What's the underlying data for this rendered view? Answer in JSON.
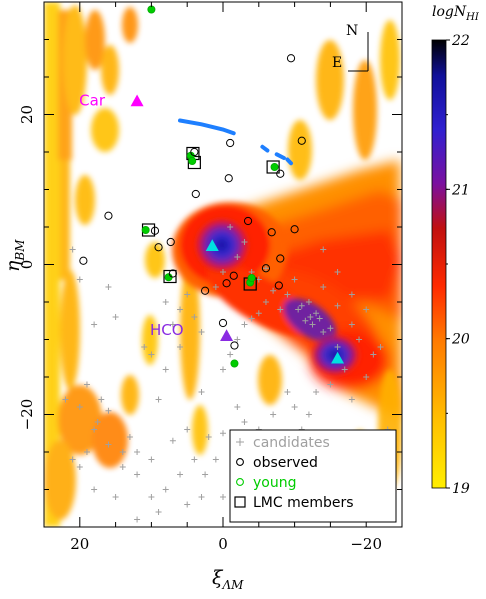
{
  "chart_data": {
    "type": "scatter",
    "title": "",
    "xlabel": "ξ",
    "xlabel_sub": "ΛM",
    "ylabel": "η",
    "ylabel_sub": "BM",
    "xlim": [
      25,
      -25
    ],
    "ylim": [
      -35,
      35
    ],
    "x_ticks": [
      20,
      0,
      -20
    ],
    "x_tick_labels": [
      "20",
      "0",
      "−20"
    ],
    "y_ticks": [
      20,
      0,
      -20
    ],
    "y_tick_labels": [
      "20",
      "0",
      "−20"
    ],
    "grid": false,
    "colorbar": {
      "label": "logN",
      "label_sub": "HI",
      "range": [
        19,
        22
      ],
      "ticks": [
        19,
        20,
        21,
        22
      ],
      "tick_labels": [
        "19",
        "20",
        "21",
        "22"
      ],
      "colors": [
        "#ffee00",
        "#ffb000",
        "#ff5a00",
        "#e80000",
        "#9a1010",
        "#6a10a0",
        "#3020d0",
        "#1010a0",
        "#000000"
      ]
    },
    "compass": {
      "north": "N",
      "east": "E"
    },
    "legend": {
      "position": "bottom-right",
      "entries": [
        {
          "label": "candidates",
          "marker": "plus",
          "color": "#a0a0a0"
        },
        {
          "label": "observed",
          "marker": "open-circle",
          "color": "#000000"
        },
        {
          "label": "young",
          "marker": "open-circle",
          "color": "#00cc00"
        },
        {
          "label": "LMC members",
          "marker": "open-square",
          "color": "#000000"
        }
      ]
    },
    "annotations": [
      {
        "text": "Car",
        "x": 14.5,
        "y": 22,
        "color": "#ff00ff"
      },
      {
        "text": "HCO",
        "x": 3.5,
        "y": -8.6,
        "color": "#8a2be2"
      }
    ],
    "series": [
      {
        "name": "observed",
        "marker": "open-circle",
        "color": "#000000",
        "points": [
          [
            -9.5,
            27.5
          ],
          [
            -1,
            16.2
          ],
          [
            -11,
            16.5
          ],
          [
            4,
            15
          ],
          [
            -0.8,
            11.5
          ],
          [
            -8,
            12.1
          ],
          [
            3.8,
            9.4
          ],
          [
            16,
            6.5
          ],
          [
            9.5,
            4.5
          ],
          [
            -3.5,
            5.8
          ],
          [
            -6.8,
            4.3
          ],
          [
            -10,
            4.7
          ],
          [
            19.5,
            0.5
          ],
          [
            9,
            2.3
          ],
          [
            7.3,
            3
          ],
          [
            -8,
            0.8
          ],
          [
            -1.5,
            -1.5
          ],
          [
            -0.5,
            -2.5
          ],
          [
            -7.8,
            -2.8
          ],
          [
            2.5,
            -3.5
          ],
          [
            0,
            -7.8
          ],
          [
            7,
            -1.2
          ],
          [
            -1.6,
            -10.8
          ],
          [
            -6,
            -0.5
          ]
        ]
      },
      {
        "name": "young",
        "marker": "open-circle",
        "color": "#00cc00",
        "points": [
          [
            10,
            34
          ],
          [
            4.5,
            14.5
          ],
          [
            4.3,
            13.8
          ],
          [
            -7.2,
            13
          ],
          [
            10.8,
            4.6
          ],
          [
            7.6,
            -1.7
          ],
          [
            -3.8,
            -2.4
          ],
          [
            -1.6,
            -13.2
          ],
          [
            -4,
            -1.8
          ]
        ]
      },
      {
        "name": "LMC members",
        "marker": "open-square",
        "color": "#000000",
        "points": [
          [
            4.2,
            14.8
          ],
          [
            4,
            13.6
          ],
          [
            -7,
            13
          ],
          [
            10.4,
            4.6
          ],
          [
            7.4,
            -1.6
          ],
          [
            -3.8,
            -2.6
          ]
        ]
      },
      {
        "name": "candidates",
        "marker": "plus",
        "color": "#a0a0a0",
        "points": [
          [
            -12,
            -5
          ],
          [
            -13,
            -6.5
          ],
          [
            -11.5,
            -7.5
          ],
          [
            -12.5,
            -8
          ],
          [
            -14,
            -9
          ],
          [
            -10.5,
            -6
          ],
          [
            -15,
            -8.5
          ],
          [
            -11,
            -5.5
          ],
          [
            -13.5,
            -7.2
          ],
          [
            -16,
            -11
          ],
          [
            -12.2,
            -7
          ],
          [
            -10,
            -2
          ],
          [
            -9,
            -4
          ],
          [
            -8,
            -6
          ],
          [
            -6,
            -5
          ],
          [
            -7,
            -3.5
          ],
          [
            -5,
            -6.5
          ],
          [
            -4,
            -7.2
          ],
          [
            -3,
            -8
          ],
          [
            -2,
            -10
          ],
          [
            -1,
            -12
          ],
          [
            0,
            -14
          ],
          [
            -14,
            2
          ],
          [
            -16,
            -1
          ],
          [
            -18,
            -4
          ],
          [
            -20,
            -6
          ],
          [
            -19,
            -10
          ],
          [
            -21,
            -12
          ],
          [
            -17,
            -14
          ],
          [
            -20,
            -15
          ],
          [
            -13,
            -17
          ],
          [
            -12,
            -20
          ],
          [
            -11,
            -22
          ],
          [
            -10.5,
            -24
          ],
          [
            -9,
            -28
          ],
          [
            -5,
            -30
          ],
          [
            -6,
            -25
          ],
          [
            -7,
            -28
          ],
          [
            -3,
            -34
          ],
          [
            -2,
            -33
          ],
          [
            1,
            -26
          ],
          [
            2.5,
            -28
          ],
          [
            3,
            -31
          ],
          [
            5,
            -32
          ],
          [
            8,
            -30
          ],
          [
            10,
            -31
          ],
          [
            12,
            -28
          ],
          [
            14,
            -27
          ],
          [
            16,
            -24
          ],
          [
            18,
            -22
          ],
          [
            19,
            -25
          ],
          [
            20,
            -27
          ],
          [
            21,
            -26
          ],
          [
            18,
            -30
          ],
          [
            15,
            -31
          ],
          [
            12,
            -34
          ],
          [
            22,
            -18
          ],
          [
            19,
            -16
          ],
          [
            17,
            -18
          ],
          [
            17.5,
            -21
          ],
          [
            20,
            -19
          ],
          [
            16,
            -19.5
          ],
          [
            13,
            -23
          ],
          [
            14,
            -25
          ],
          [
            12,
            -25
          ],
          [
            10,
            -26
          ],
          [
            7,
            -23.5
          ],
          [
            5,
            -22
          ],
          [
            2,
            -23
          ],
          [
            0,
            -22.5
          ],
          [
            -2,
            -19
          ],
          [
            -3,
            -21
          ],
          [
            3,
            -17
          ],
          [
            -5,
            -22
          ],
          [
            -7,
            -20
          ],
          [
            -9,
            -17
          ],
          [
            -10,
            -19
          ],
          [
            6,
            -6
          ],
          [
            7,
            -8
          ],
          [
            5,
            -4
          ],
          [
            4,
            -7
          ],
          [
            3,
            -9
          ],
          [
            8,
            -5
          ],
          [
            1,
            -3
          ],
          [
            0,
            -1
          ],
          [
            -2,
            1
          ],
          [
            -3,
            3
          ],
          [
            -1,
            5
          ],
          [
            -4,
            -1
          ],
          [
            -5,
            -2
          ],
          [
            -6,
            -0.5
          ],
          [
            10,
            -12
          ],
          [
            11,
            -11
          ],
          [
            15,
            -7
          ],
          [
            16,
            -3
          ],
          [
            20,
            -2
          ],
          [
            21,
            2
          ],
          [
            18,
            -8
          ],
          [
            8,
            -14
          ],
          [
            6,
            -11
          ],
          [
            9,
            -18
          ],
          [
            -14,
            -3
          ],
          [
            -16,
            -5.5
          ],
          [
            -18,
            -8
          ],
          [
            -22,
            -11
          ],
          [
            -15,
            -16
          ],
          [
            -18,
            -18
          ],
          [
            -23,
            -22
          ],
          [
            -20,
            -29
          ],
          [
            -17,
            -33
          ],
          [
            -13,
            -31
          ],
          [
            -8,
            -33
          ],
          [
            -4,
            -27
          ],
          [
            0,
            -31
          ],
          [
            4,
            -26
          ],
          [
            6,
            -28
          ],
          [
            9,
            -33
          ]
        ]
      }
    ],
    "lmc_stream_segments": [
      [
        [
          6,
          19.2
        ],
        [
          3,
          18.7
        ],
        [
          0,
          18
        ],
        [
          -1.5,
          17.5
        ]
      ],
      [
        [
          -5.5,
          15.7
        ],
        [
          -6.2,
          15.2
        ]
      ],
      [
        [
          -7.5,
          14.7
        ],
        [
          -8.5,
          14.2
        ]
      ],
      [
        [
          -9,
          14
        ],
        [
          -9.5,
          13.5
        ]
      ]
    ],
    "triangles": [
      {
        "name": "Car",
        "x": 12,
        "y": 21.8,
        "color": "#ff00ff"
      },
      {
        "name": "HCO",
        "x": -0.5,
        "y": -9.5,
        "color": "#8a2be2"
      },
      {
        "name": "LMC",
        "x": 1.5,
        "y": 2.5,
        "color": "#00e0e0"
      },
      {
        "name": "SMC",
        "x": -16,
        "y": -12.5,
        "color": "#00e0e0"
      }
    ]
  }
}
